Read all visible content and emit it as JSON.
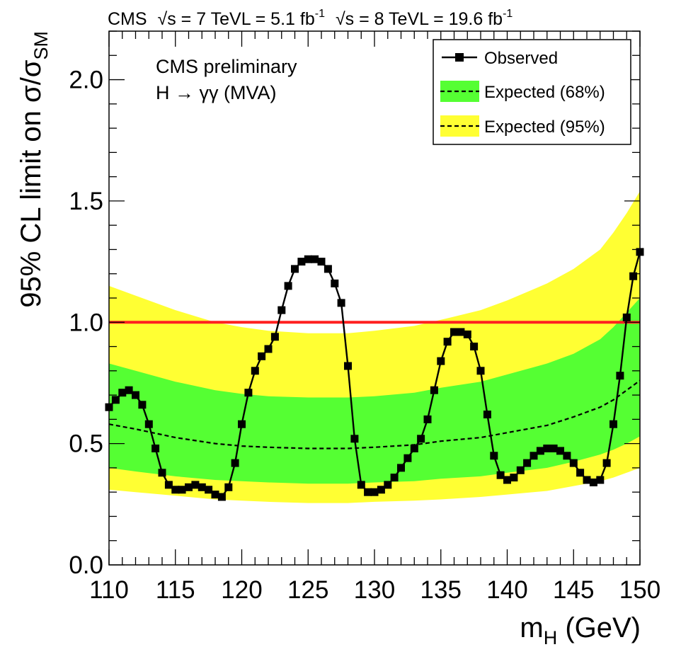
{
  "chart_data": {
    "type": "line",
    "header": {
      "experiment": "CMS",
      "run1": {
        "sqrt_s": "√s = 7 TeV",
        "lumi": "L = 5.1 fb",
        "lumi_exp": "-1"
      },
      "run2": {
        "sqrt_s": "√s = 8 TeV",
        "lumi": "L = 19.6 fb",
        "lumi_exp": "-1"
      }
    },
    "annotations": {
      "line1": "CMS preliminary",
      "line2": "H → γγ   (MVA)"
    },
    "xlabel": {
      "main": "m",
      "sub": "H",
      "rest": " (GeV)"
    },
    "ylabel": {
      "main": "95% CL limit on σ/σ",
      "sub": "SM"
    },
    "xlim": [
      110,
      150
    ],
    "ylim": [
      0,
      2.2
    ],
    "x_ticks": [
      "110",
      "115",
      "120",
      "125",
      "130",
      "135",
      "140",
      "145",
      "150"
    ],
    "y_ticks": [
      "0.0",
      "0.5",
      "1.0",
      "1.5",
      "2.0"
    ],
    "legend": {
      "position": "top-right",
      "entries": [
        "Observed",
        "Expected (68%)",
        "Expected (95%)"
      ]
    },
    "reference_line": {
      "y": 1.0,
      "color": "#ff2020"
    },
    "colors": {
      "band68": "#55ff33",
      "band95": "#ffff33",
      "observed": "#000000",
      "expected": "#000000"
    },
    "expected": {
      "x": [
        110,
        112,
        115,
        118,
        120,
        122,
        125,
        128,
        130,
        133,
        135,
        138,
        140,
        143,
        145,
        147,
        148,
        149,
        150
      ],
      "median": [
        0.58,
        0.56,
        0.525,
        0.5,
        0.49,
        0.485,
        0.48,
        0.48,
        0.485,
        0.495,
        0.51,
        0.525,
        0.545,
        0.575,
        0.61,
        0.65,
        0.68,
        0.72,
        0.76
      ],
      "lo68": [
        0.4,
        0.385,
        0.365,
        0.35,
        0.345,
        0.34,
        0.335,
        0.335,
        0.34,
        0.345,
        0.355,
        0.365,
        0.38,
        0.4,
        0.425,
        0.455,
        0.475,
        0.5,
        0.53
      ],
      "hi68": [
        0.83,
        0.8,
        0.755,
        0.72,
        0.705,
        0.695,
        0.69,
        0.69,
        0.695,
        0.71,
        0.73,
        0.755,
        0.785,
        0.83,
        0.87,
        0.93,
        0.98,
        1.04,
        1.1
      ],
      "lo95": [
        0.31,
        0.3,
        0.285,
        0.27,
        0.265,
        0.26,
        0.255,
        0.255,
        0.26,
        0.265,
        0.27,
        0.28,
        0.29,
        0.305,
        0.325,
        0.345,
        0.36,
        0.38,
        0.4
      ],
      "hi95": [
        1.15,
        1.11,
        1.05,
        1.0,
        0.98,
        0.965,
        0.955,
        0.955,
        0.965,
        0.985,
        1.01,
        1.05,
        1.09,
        1.16,
        1.22,
        1.3,
        1.37,
        1.45,
        1.54
      ]
    },
    "observed": {
      "x": [
        110,
        110.5,
        111,
        111.5,
        112,
        112.5,
        113,
        113.5,
        114,
        114.5,
        115,
        115.5,
        116,
        116.5,
        117,
        117.5,
        118,
        118.5,
        119,
        119.5,
        120,
        120.5,
        121,
        121.5,
        122,
        122.5,
        123,
        123.5,
        124,
        124.5,
        125,
        125.5,
        126,
        126.5,
        127,
        127.5,
        128,
        128.5,
        129,
        129.5,
        130,
        130.5,
        131,
        131.5,
        132,
        132.5,
        133,
        133.5,
        134,
        134.5,
        135,
        135.5,
        136,
        136.5,
        137,
        137.5,
        138,
        138.5,
        139,
        139.5,
        140,
        140.5,
        141,
        141.5,
        142,
        142.5,
        143,
        143.5,
        144,
        144.5,
        145,
        145.5,
        146,
        146.5,
        147,
        147.5,
        148,
        148.5,
        149,
        149.5,
        150
      ],
      "y": [
        0.65,
        0.68,
        0.71,
        0.72,
        0.7,
        0.66,
        0.58,
        0.48,
        0.38,
        0.33,
        0.31,
        0.31,
        0.32,
        0.33,
        0.32,
        0.31,
        0.29,
        0.28,
        0.32,
        0.42,
        0.58,
        0.71,
        0.8,
        0.86,
        0.89,
        0.94,
        1.05,
        1.15,
        1.22,
        1.25,
        1.26,
        1.26,
        1.25,
        1.22,
        1.16,
        1.08,
        0.82,
        0.52,
        0.33,
        0.3,
        0.3,
        0.31,
        0.33,
        0.36,
        0.4,
        0.44,
        0.48,
        0.52,
        0.6,
        0.72,
        0.84,
        0.92,
        0.96,
        0.96,
        0.95,
        0.9,
        0.8,
        0.62,
        0.45,
        0.37,
        0.35,
        0.36,
        0.39,
        0.42,
        0.45,
        0.47,
        0.48,
        0.48,
        0.47,
        0.45,
        0.42,
        0.38,
        0.35,
        0.34,
        0.35,
        0.42,
        0.58,
        0.78,
        1.02,
        1.19,
        1.29
      ]
    }
  }
}
